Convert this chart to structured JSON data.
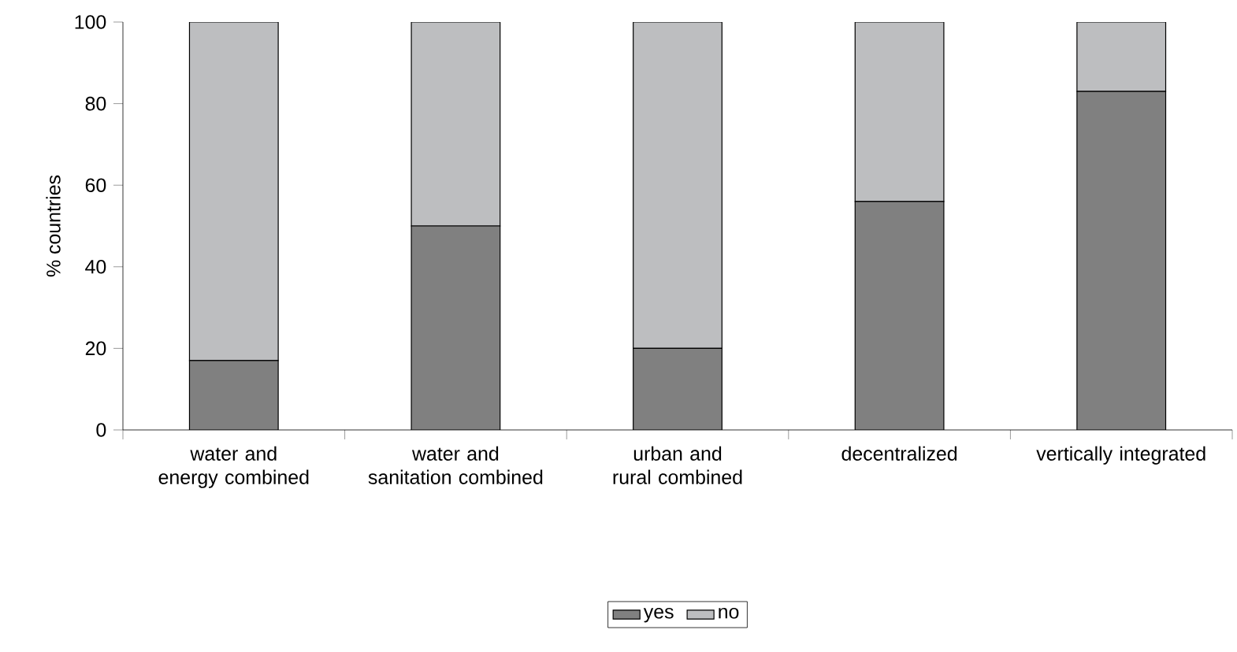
{
  "chart_data": {
    "type": "bar",
    "stacked": true,
    "categories": [
      "water and energy combined",
      "water and sanitation combined",
      "urban and rural combined",
      "decentralized",
      "vertically integrated"
    ],
    "series": [
      {
        "name": "yes",
        "color": "#808080",
        "values": [
          17,
          50,
          20,
          56,
          83
        ]
      },
      {
        "name": "no",
        "color": "#bdbec0",
        "values": [
          83,
          50,
          80,
          44,
          17
        ]
      }
    ],
    "ylabel": "% countries",
    "ylim": [
      0,
      100
    ],
    "yticks": [
      0,
      20,
      40,
      60,
      80,
      100
    ],
    "legend": "bottom"
  }
}
